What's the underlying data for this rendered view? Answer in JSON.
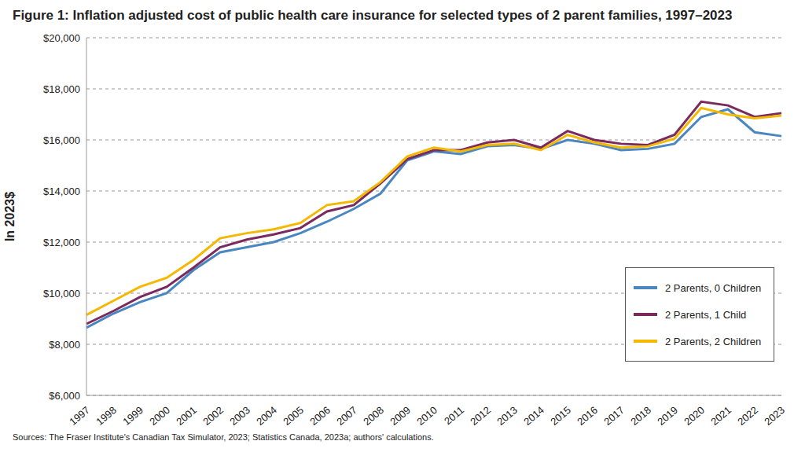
{
  "chart_data": {
    "type": "line",
    "title": "Figure 1: Inflation adjusted cost of public health care insurance for selected types of 2 parent families, 1997–2023",
    "y_label": "In 2023$",
    "source": "Sources: The Fraser Institute's Canadian Tax Simulator, 2023; Statistics Canada, 2023a; authors' calculations.",
    "categories": [
      "1997",
      "1998",
      "1999",
      "2000",
      "2001",
      "2002",
      "2003",
      "2004",
      "2005",
      "2006",
      "2007",
      "2008",
      "2009",
      "2010",
      "2011",
      "2012",
      "2013",
      "2014",
      "2015",
      "2016",
      "2017",
      "2018",
      "2019",
      "2020",
      "2021",
      "2022",
      "2023"
    ],
    "series": [
      {
        "name": "2 Parents, 0 Children",
        "color": "#4a86c0",
        "values": [
          8650,
          9200,
          9650,
          10000,
          10900,
          11600,
          11800,
          12000,
          12350,
          12800,
          13300,
          13900,
          15200,
          15550,
          15450,
          15750,
          15800,
          15650,
          16000,
          15850,
          15600,
          15650,
          15850,
          16900,
          17200,
          16300,
          16150
        ]
      },
      {
        "name": "2 Parents, 1 Child",
        "color": "#7b2a5e",
        "values": [
          8800,
          9300,
          9850,
          10250,
          11000,
          11800,
          12100,
          12300,
          12550,
          13200,
          13450,
          14300,
          15250,
          15600,
          15600,
          15900,
          16000,
          15700,
          16350,
          16000,
          15850,
          15800,
          16200,
          17500,
          17350,
          16900,
          17050
        ]
      },
      {
        "name": "2 Parents, 2 Children",
        "color": "#f5b800",
        "values": [
          9150,
          9700,
          10250,
          10600,
          11300,
          12150,
          12350,
          12500,
          12750,
          13450,
          13600,
          14350,
          15350,
          15700,
          15550,
          15800,
          15850,
          15600,
          16200,
          15900,
          15700,
          15750,
          16050,
          17250,
          17000,
          16850,
          16950
        ]
      }
    ],
    "ylim": [
      6000,
      20000
    ],
    "yticks": [
      {
        "value": 6000,
        "label": "$6,000"
      },
      {
        "value": 8000,
        "label": "$8,000"
      },
      {
        "value": 10000,
        "label": "$10,000"
      },
      {
        "value": 12000,
        "label": "$12,000"
      },
      {
        "value": 14000,
        "label": "$14,000"
      },
      {
        "value": 16000,
        "label": "$16,000"
      },
      {
        "value": 18000,
        "label": "$18,000"
      },
      {
        "value": 20000,
        "label": "$20,000"
      }
    ],
    "grid": true,
    "legend": "lower right"
  }
}
